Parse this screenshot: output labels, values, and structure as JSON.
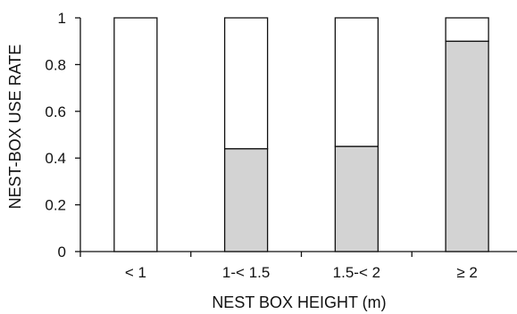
{
  "chart_data": {
    "type": "bar",
    "stacked": true,
    "xlabel": "NEST BOX HEIGHT (m)",
    "ylabel": "NEST-BOX USE RATE",
    "ylim": [
      0,
      1
    ],
    "yticks": [
      "0",
      "0.2",
      "0.4",
      "0.6",
      "0.8",
      "1"
    ],
    "categories": [
      "< 1",
      "1-< 1.5",
      "1.5-< 2",
      "≥ 2"
    ],
    "series": [
      {
        "values": [
          0,
          0.44,
          0.45,
          0.9
        ],
        "color": "#d3d3d3"
      },
      {
        "values": [
          1,
          0.56,
          0.55,
          0.1
        ],
        "color": "#ffffff"
      }
    ],
    "grid": false
  }
}
